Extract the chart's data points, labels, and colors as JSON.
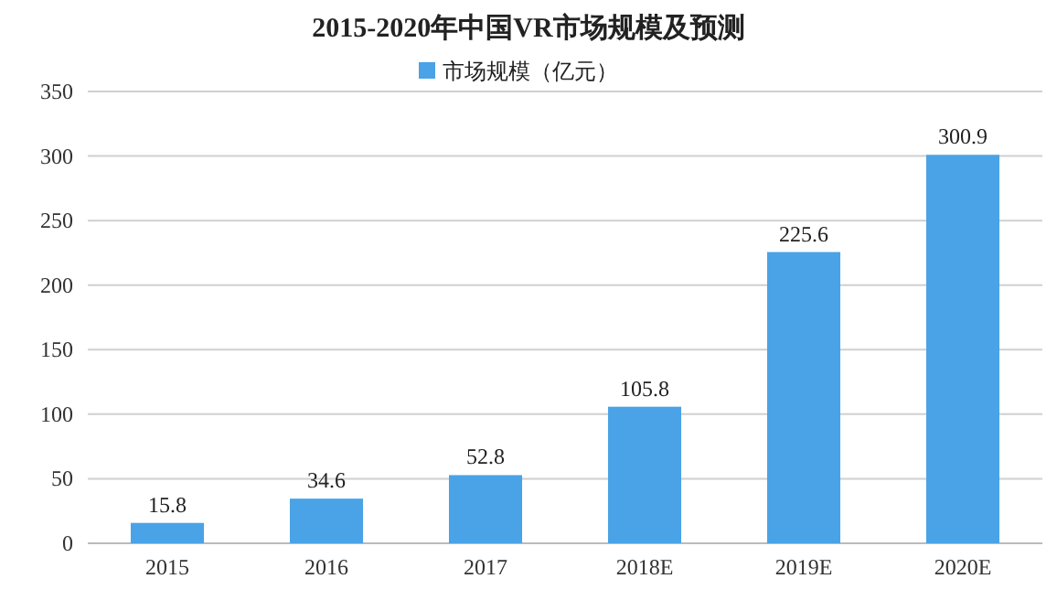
{
  "chart_data": {
    "type": "bar",
    "title": "2015-2020年中国VR市场规模及预测",
    "categories": [
      "2015",
      "2016",
      "2017",
      "2018E",
      "2019E",
      "2020E"
    ],
    "series": [
      {
        "name": "市场规模（亿元）",
        "color": "#4aa3e6",
        "values": [
          15.8,
          34.6,
          52.8,
          105.8,
          225.6,
          300.9
        ]
      }
    ],
    "ylim": [
      0,
      350
    ],
    "yticks": [
      0,
      50,
      100,
      150,
      200,
      250,
      300,
      350
    ],
    "grid": "y",
    "legend": "top",
    "data_labels": true
  }
}
